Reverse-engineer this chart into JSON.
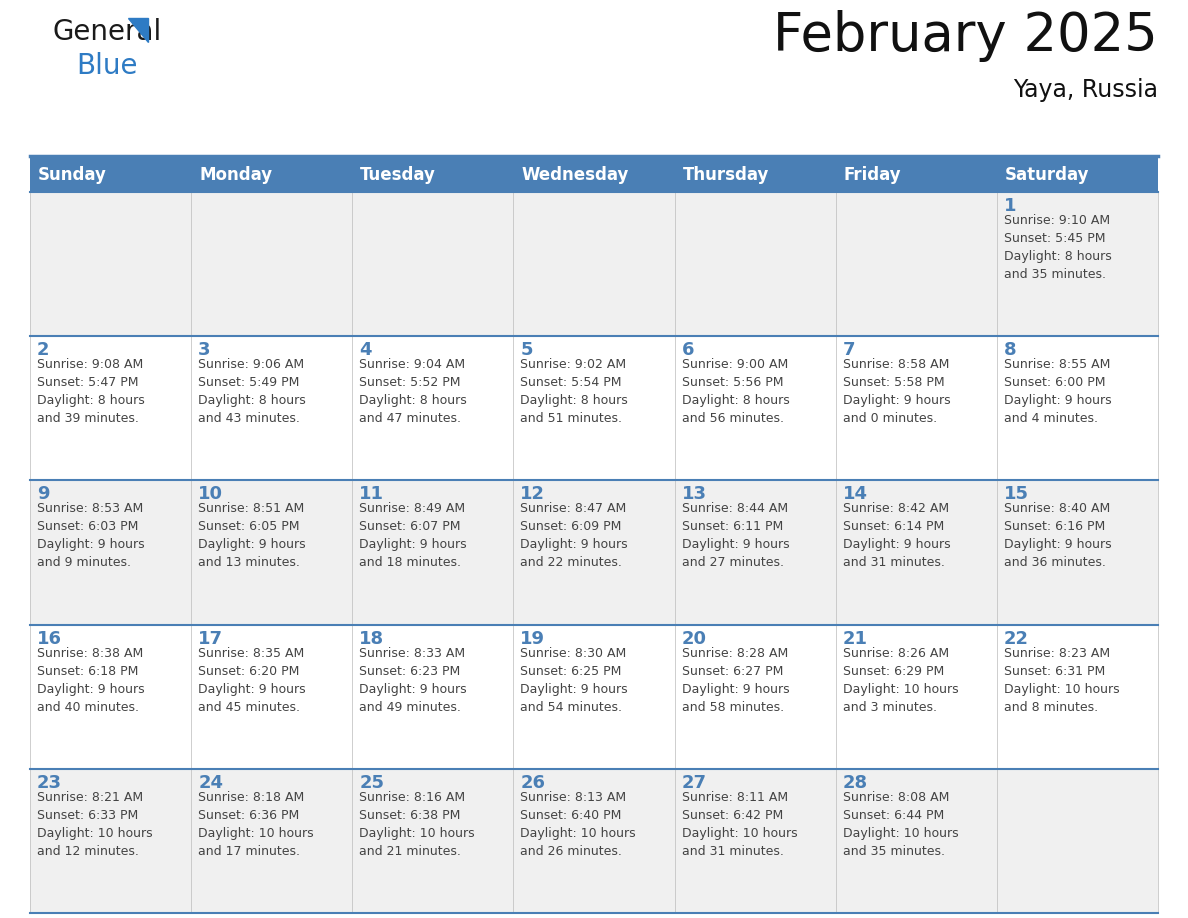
{
  "title": "February 2025",
  "subtitle": "Yaya, Russia",
  "days_of_week": [
    "Sunday",
    "Monday",
    "Tuesday",
    "Wednesday",
    "Thursday",
    "Friday",
    "Saturday"
  ],
  "header_bg_color": "#4a7fb5",
  "header_text_color": "#ffffff",
  "cell_bg_color_odd": "#f0f0f0",
  "cell_bg_color_even": "#ffffff",
  "cell_border_color": "#4a7fb5",
  "day_number_color": "#4a7fb5",
  "text_color": "#444444",
  "title_color": "#111111",
  "weeks": [
    [
      {
        "day": null,
        "info": null
      },
      {
        "day": null,
        "info": null
      },
      {
        "day": null,
        "info": null
      },
      {
        "day": null,
        "info": null
      },
      {
        "day": null,
        "info": null
      },
      {
        "day": null,
        "info": null
      },
      {
        "day": 1,
        "info": "Sunrise: 9:10 AM\nSunset: 5:45 PM\nDaylight: 8 hours\nand 35 minutes."
      }
    ],
    [
      {
        "day": 2,
        "info": "Sunrise: 9:08 AM\nSunset: 5:47 PM\nDaylight: 8 hours\nand 39 minutes."
      },
      {
        "day": 3,
        "info": "Sunrise: 9:06 AM\nSunset: 5:49 PM\nDaylight: 8 hours\nand 43 minutes."
      },
      {
        "day": 4,
        "info": "Sunrise: 9:04 AM\nSunset: 5:52 PM\nDaylight: 8 hours\nand 47 minutes."
      },
      {
        "day": 5,
        "info": "Sunrise: 9:02 AM\nSunset: 5:54 PM\nDaylight: 8 hours\nand 51 minutes."
      },
      {
        "day": 6,
        "info": "Sunrise: 9:00 AM\nSunset: 5:56 PM\nDaylight: 8 hours\nand 56 minutes."
      },
      {
        "day": 7,
        "info": "Sunrise: 8:58 AM\nSunset: 5:58 PM\nDaylight: 9 hours\nand 0 minutes."
      },
      {
        "day": 8,
        "info": "Sunrise: 8:55 AM\nSunset: 6:00 PM\nDaylight: 9 hours\nand 4 minutes."
      }
    ],
    [
      {
        "day": 9,
        "info": "Sunrise: 8:53 AM\nSunset: 6:03 PM\nDaylight: 9 hours\nand 9 minutes."
      },
      {
        "day": 10,
        "info": "Sunrise: 8:51 AM\nSunset: 6:05 PM\nDaylight: 9 hours\nand 13 minutes."
      },
      {
        "day": 11,
        "info": "Sunrise: 8:49 AM\nSunset: 6:07 PM\nDaylight: 9 hours\nand 18 minutes."
      },
      {
        "day": 12,
        "info": "Sunrise: 8:47 AM\nSunset: 6:09 PM\nDaylight: 9 hours\nand 22 minutes."
      },
      {
        "day": 13,
        "info": "Sunrise: 8:44 AM\nSunset: 6:11 PM\nDaylight: 9 hours\nand 27 minutes."
      },
      {
        "day": 14,
        "info": "Sunrise: 8:42 AM\nSunset: 6:14 PM\nDaylight: 9 hours\nand 31 minutes."
      },
      {
        "day": 15,
        "info": "Sunrise: 8:40 AM\nSunset: 6:16 PM\nDaylight: 9 hours\nand 36 minutes."
      }
    ],
    [
      {
        "day": 16,
        "info": "Sunrise: 8:38 AM\nSunset: 6:18 PM\nDaylight: 9 hours\nand 40 minutes."
      },
      {
        "day": 17,
        "info": "Sunrise: 8:35 AM\nSunset: 6:20 PM\nDaylight: 9 hours\nand 45 minutes."
      },
      {
        "day": 18,
        "info": "Sunrise: 8:33 AM\nSunset: 6:23 PM\nDaylight: 9 hours\nand 49 minutes."
      },
      {
        "day": 19,
        "info": "Sunrise: 8:30 AM\nSunset: 6:25 PM\nDaylight: 9 hours\nand 54 minutes."
      },
      {
        "day": 20,
        "info": "Sunrise: 8:28 AM\nSunset: 6:27 PM\nDaylight: 9 hours\nand 58 minutes."
      },
      {
        "day": 21,
        "info": "Sunrise: 8:26 AM\nSunset: 6:29 PM\nDaylight: 10 hours\nand 3 minutes."
      },
      {
        "day": 22,
        "info": "Sunrise: 8:23 AM\nSunset: 6:31 PM\nDaylight: 10 hours\nand 8 minutes."
      }
    ],
    [
      {
        "day": 23,
        "info": "Sunrise: 8:21 AM\nSunset: 6:33 PM\nDaylight: 10 hours\nand 12 minutes."
      },
      {
        "day": 24,
        "info": "Sunrise: 8:18 AM\nSunset: 6:36 PM\nDaylight: 10 hours\nand 17 minutes."
      },
      {
        "day": 25,
        "info": "Sunrise: 8:16 AM\nSunset: 6:38 PM\nDaylight: 10 hours\nand 21 minutes."
      },
      {
        "day": 26,
        "info": "Sunrise: 8:13 AM\nSunset: 6:40 PM\nDaylight: 10 hours\nand 26 minutes."
      },
      {
        "day": 27,
        "info": "Sunrise: 8:11 AM\nSunset: 6:42 PM\nDaylight: 10 hours\nand 31 minutes."
      },
      {
        "day": 28,
        "info": "Sunrise: 8:08 AM\nSunset: 6:44 PM\nDaylight: 10 hours\nand 35 minutes."
      },
      {
        "day": null,
        "info": null
      }
    ]
  ]
}
